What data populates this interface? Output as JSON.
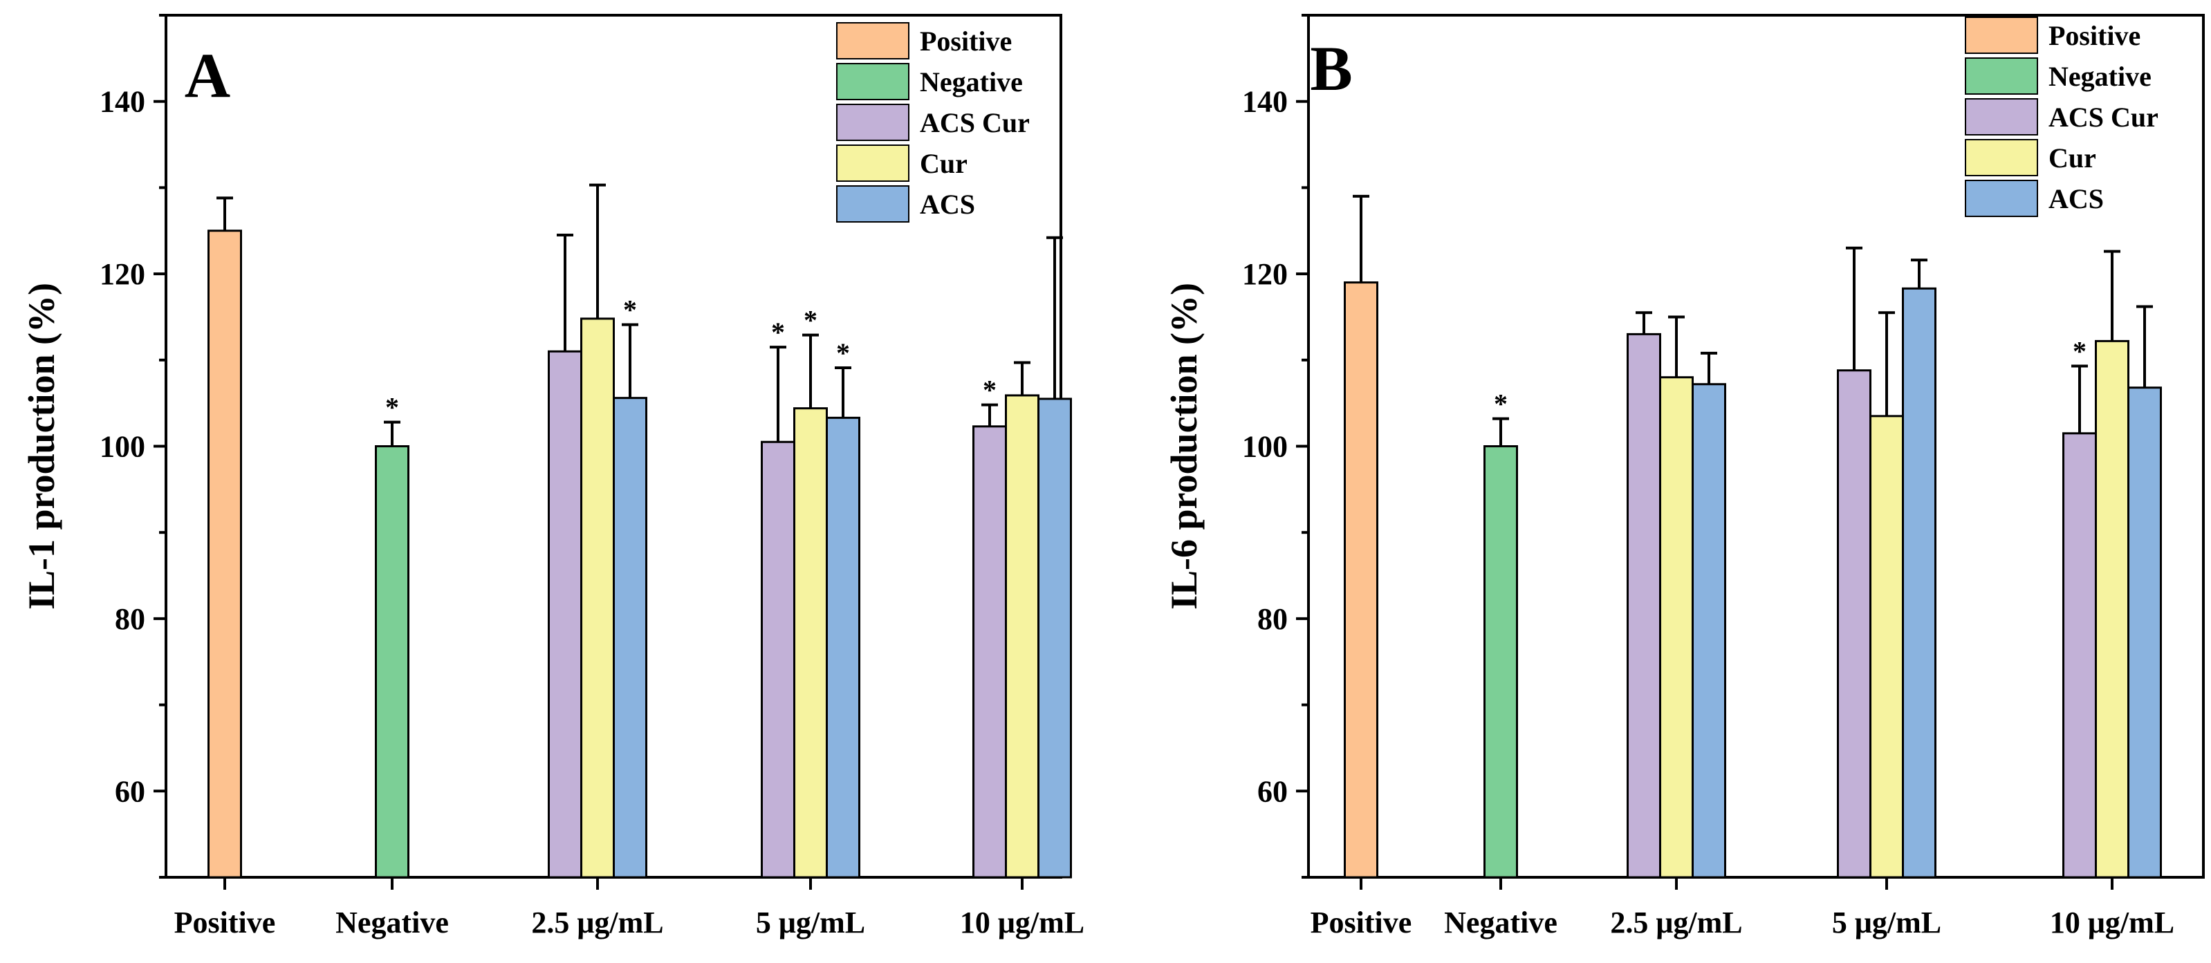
{
  "chart_data": [
    {
      "panel": "A",
      "type": "bar",
      "ylabel": "IL-1 production (%)",
      "ylim": [
        50,
        150
      ],
      "yticks": [
        60,
        80,
        100,
        120,
        140
      ],
      "categories": [
        "Positive",
        "Negative",
        "2.5 μg/mL",
        "5 μg/mL",
        "10 μg/mL"
      ],
      "series": [
        {
          "name": "Positive",
          "color": "#FDC290",
          "values": [
            125.0,
            null,
            null,
            null,
            null
          ],
          "errors": [
            3.8,
            null,
            null,
            null,
            null
          ],
          "sig": [
            "",
            "",
            "",
            "",
            ""
          ]
        },
        {
          "name": "Negative",
          "color": "#7CCF96",
          "values": [
            null,
            100.0,
            null,
            null,
            null
          ],
          "errors": [
            null,
            2.8,
            null,
            null,
            null
          ],
          "sig": [
            "",
            "*",
            "",
            "",
            ""
          ]
        },
        {
          "name": "ACS Cur",
          "color": "#C2B1D7",
          "values": [
            null,
            null,
            111.0,
            100.5,
            102.3
          ],
          "errors": [
            null,
            null,
            13.5,
            11.0,
            2.5
          ],
          "sig": [
            "",
            "",
            "",
            "*",
            "*"
          ]
        },
        {
          "name": "Cur",
          "color": "#F6F3A0",
          "values": [
            null,
            null,
            114.8,
            104.4,
            105.9
          ],
          "errors": [
            null,
            null,
            15.5,
            8.5,
            3.8
          ],
          "sig": [
            "",
            "",
            "",
            "*",
            ""
          ]
        },
        {
          "name": "ACS",
          "color": "#8AB3DF",
          "values": [
            null,
            null,
            105.6,
            103.3,
            105.5
          ],
          "errors": [
            null,
            null,
            8.5,
            5.8,
            18.7
          ],
          "sig": [
            "",
            "",
            "*",
            "*",
            ""
          ]
        }
      ]
    },
    {
      "panel": "B",
      "type": "bar",
      "ylabel": "IL-6 production (%)",
      "ylim": [
        50,
        150
      ],
      "yticks": [
        60,
        80,
        100,
        120,
        140
      ],
      "categories": [
        "Positive",
        "Negative",
        "2.5 μg/mL",
        "5 μg/mL",
        "10 μg/mL"
      ],
      "series": [
        {
          "name": "Positive",
          "color": "#FDC290",
          "values": [
            119.0,
            null,
            null,
            null,
            null
          ],
          "errors": [
            10.0,
            null,
            null,
            null,
            null
          ],
          "sig": [
            "",
            "",
            "",
            "",
            ""
          ]
        },
        {
          "name": "Negative",
          "color": "#7CCF96",
          "values": [
            null,
            100.0,
            null,
            null,
            null
          ],
          "errors": [
            null,
            3.2,
            null,
            null,
            null
          ],
          "sig": [
            "",
            "*",
            "",
            "",
            ""
          ]
        },
        {
          "name": "ACS Cur",
          "color": "#C2B1D7",
          "values": [
            null,
            null,
            113.0,
            108.8,
            101.5
          ],
          "errors": [
            null,
            null,
            2.5,
            14.2,
            7.8
          ],
          "sig": [
            "",
            "",
            "",
            "",
            "*"
          ]
        },
        {
          "name": "Cur",
          "color": "#F6F3A0",
          "values": [
            null,
            null,
            108.0,
            103.5,
            112.2
          ],
          "errors": [
            null,
            null,
            7.0,
            12.0,
            10.4
          ],
          "sig": [
            "",
            "",
            "",
            "",
            ""
          ]
        },
        {
          "name": "ACS",
          "color": "#8AB3DF",
          "values": [
            null,
            null,
            107.2,
            118.3,
            106.8
          ],
          "errors": [
            null,
            null,
            3.6,
            3.3,
            9.4
          ],
          "sig": [
            "",
            "",
            "",
            "",
            ""
          ]
        }
      ]
    }
  ]
}
